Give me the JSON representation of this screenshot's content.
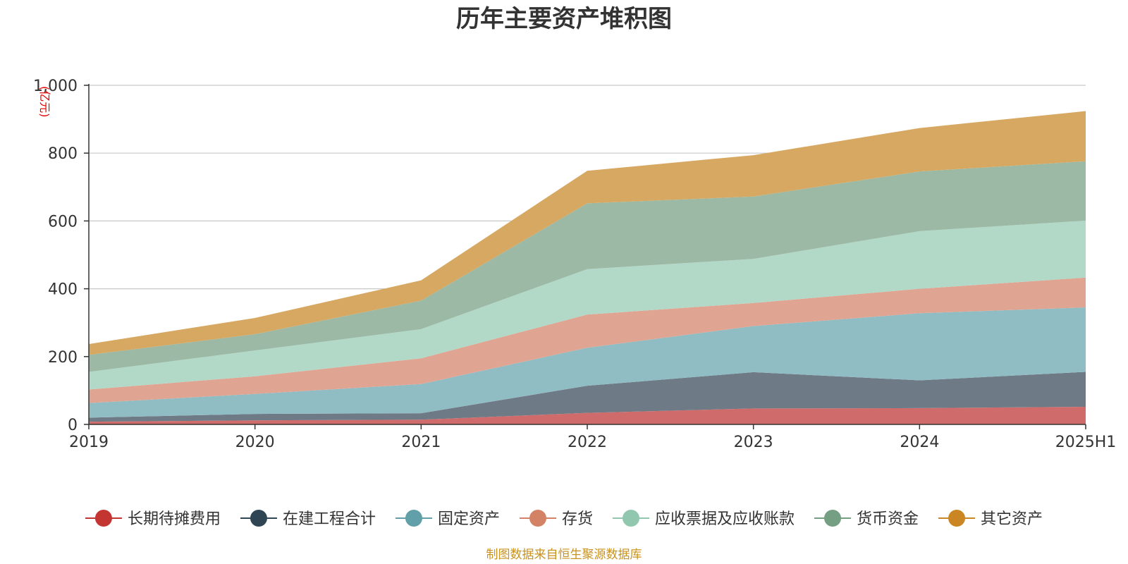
{
  "chart_data": {
    "type": "area",
    "title": "历年主要资产堆积图",
    "ylabel": "(亿元)",
    "xlabel": "",
    "x": [
      "2019",
      "2020",
      "2021",
      "2022",
      "2023",
      "2024",
      "2025H1"
    ],
    "ylim": [
      0,
      1000
    ],
    "yticks": [
      0,
      200,
      400,
      600,
      800,
      1000
    ],
    "ytick_labels": [
      "0",
      "200",
      "400",
      "600",
      "800",
      "1,000"
    ],
    "grid": true,
    "legend_position": "bottom",
    "stacked": true,
    "series": [
      {
        "name": "长期待摊费用",
        "values": [
          8,
          12,
          14,
          34,
          47,
          48,
          52
        ],
        "color": "#d06b6b",
        "marker": "#c23531"
      },
      {
        "name": "在建工程合计",
        "values": [
          12,
          19,
          19,
          80,
          107,
          82,
          103
        ],
        "color": "#6e7b87",
        "marker": "#2f4554"
      },
      {
        "name": "固定资产",
        "values": [
          43,
          59,
          86,
          112,
          136,
          198,
          190
        ],
        "color": "#90bcc3",
        "marker": "#61a0a8"
      },
      {
        "name": "存货",
        "values": [
          40,
          52,
          76,
          98,
          68,
          72,
          88
        ],
        "color": "#e0a592",
        "marker": "#d48265"
      },
      {
        "name": "应收票据及应收账款",
        "values": [
          52,
          76,
          86,
          134,
          130,
          170,
          168
        ],
        "color": "#b2d8c7",
        "marker": "#91c7ae"
      },
      {
        "name": "货币资金",
        "values": [
          50,
          48,
          84,
          194,
          184,
          176,
          175
        ],
        "color": "#9cb9a5",
        "marker": "#749f83"
      },
      {
        "name": "其它资产",
        "values": [
          32,
          48,
          60,
          96,
          122,
          128,
          148
        ],
        "color": "#d7a862",
        "marker": "#ca8622"
      }
    ]
  },
  "source_note": "制图数据来自恒生聚源数据库"
}
